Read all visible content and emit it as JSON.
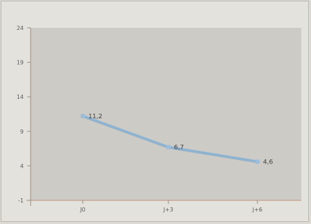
{
  "chart_data": {
    "type": "line",
    "title": "",
    "xlabel": "",
    "ylabel": "",
    "categories": [
      "J0",
      "J+3",
      "J+6"
    ],
    "series": [
      {
        "values": [
          11.2,
          6.7,
          4.6
        ]
      }
    ],
    "data_labels": [
      "11,2",
      "6,7",
      "4,6"
    ],
    "ylim": [
      -1,
      24
    ],
    "y_ticks": [
      -1,
      4,
      9,
      14,
      19,
      24
    ],
    "y_tick_labels": [
      "-1",
      "4",
      "9",
      "14",
      "19",
      "24"
    ],
    "grid": false,
    "legend": "none",
    "colors": {
      "line": "#8fb3d0",
      "marker": "#9cbddb",
      "plot_background": "#cdcbc6",
      "axis": "#9a8f80",
      "baseline": "#b8907a",
      "text": "#5a5a5a"
    }
  }
}
